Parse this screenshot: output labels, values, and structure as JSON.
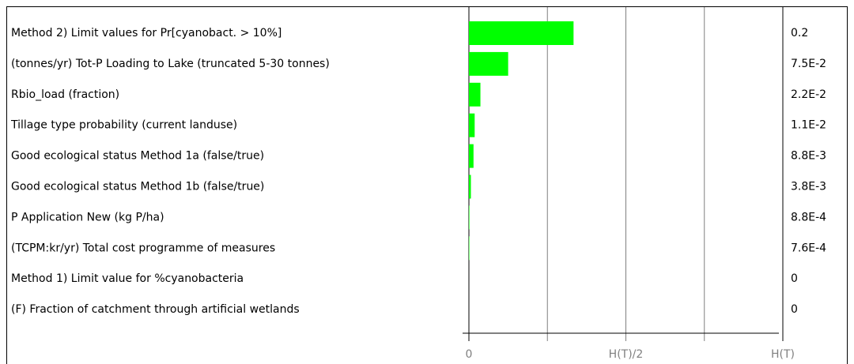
{
  "chart_data": {
    "type": "bar",
    "categories": [
      "Method 2) Limit values for  Pr[cyanobact. > 10%]",
      "(tonnes/yr) Tot-P Loading  to Lake (truncated 5-30 tonnes)",
      "Rbio_load (fraction)",
      "Tillage type probability (current landuse)",
      "Good ecological status  Method 1a (false/true)",
      "Good ecological status  Method 1b (false/true)",
      "P Application New (kg P/ha)",
      "(TCPM:kr/yr) Total cost programme of measures",
      "Method 1) Limit value for  %cyanobacteria",
      "(F) Fraction of  catchment through  artificial wetlands"
    ],
    "values": [
      0.2,
      0.075,
      0.022,
      0.011,
      0.0088,
      0.0038,
      0.00088,
      0.00076,
      0,
      0
    ],
    "value_labels": [
      "0.2",
      "7.5E-2",
      "2.2E-2",
      "1.1E-2",
      "8.8E-3",
      "3.8E-3",
      "8.8E-4",
      "7.6E-4",
      "0",
      "0"
    ],
    "color": "#00ff00",
    "xlim": [
      0,
      0.6
    ],
    "xticks": [
      0,
      {
        "value": 0.3,
        "label": "H(T)/2"
      },
      {
        "value": 0.6,
        "label": "H(T)"
      }
    ],
    "minor_xticks": [
      0.15,
      0.45
    ],
    "grid": true
  }
}
